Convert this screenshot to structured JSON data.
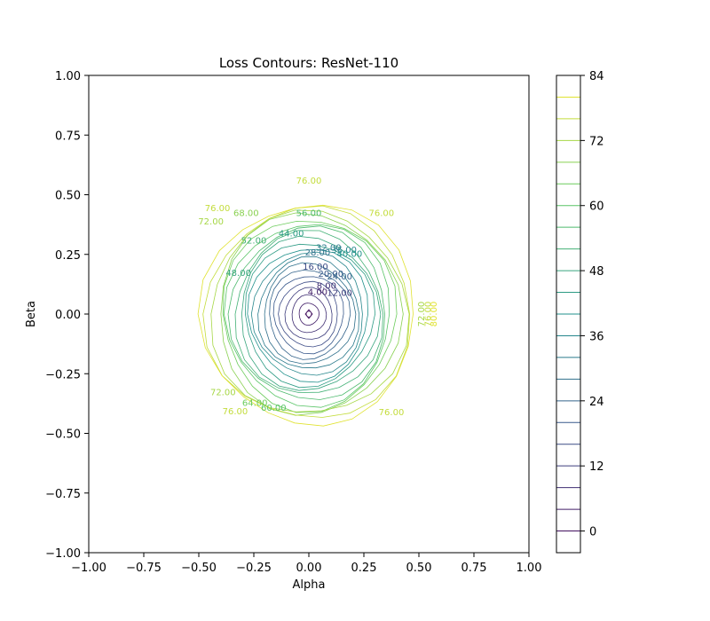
{
  "chart_data": {
    "type": "contour",
    "title": "Loss Contours: ResNet-110",
    "xlabel": "Alpha",
    "ylabel": "Beta",
    "xlim": [
      -1.0,
      1.0
    ],
    "ylim": [
      -1.0,
      1.0
    ],
    "x_ticks": [
      "−1.00",
      "−0.75",
      "−0.50",
      "−0.25",
      "0.00",
      "0.25",
      "0.50",
      "0.75",
      "1.00"
    ],
    "y_ticks": [
      "1.00",
      "0.75",
      "0.50",
      "0.25",
      "0.00",
      "−0.25",
      "−0.50",
      "−0.75",
      "−1.00"
    ],
    "center": [
      0.0,
      0.0
    ],
    "levels": [
      0,
      4,
      8,
      12,
      16,
      20,
      24,
      28,
      32,
      36,
      40,
      44,
      48,
      52,
      56,
      60,
      64,
      68,
      72,
      76,
      80
    ],
    "contour_labels": [
      {
        "text": "4.00",
        "x": 0.04,
        "y": 0.09,
        "level": 4
      },
      {
        "text": "8.00",
        "x": 0.08,
        "y": 0.115,
        "level": 8
      },
      {
        "text": "12.00",
        "x": 0.14,
        "y": 0.085,
        "level": 12
      },
      {
        "text": "16.00",
        "x": 0.03,
        "y": 0.195,
        "level": 16
      },
      {
        "text": "20.00",
        "x": 0.1,
        "y": 0.165,
        "level": 20
      },
      {
        "text": "24.00",
        "x": 0.14,
        "y": 0.155,
        "level": 24
      },
      {
        "text": "28.00",
        "x": 0.04,
        "y": 0.255,
        "level": 28
      },
      {
        "text": "32.00",
        "x": 0.09,
        "y": 0.275,
        "level": 32
      },
      {
        "text": "36.00",
        "x": 0.16,
        "y": 0.265,
        "level": 36
      },
      {
        "text": "40.00",
        "x": 0.185,
        "y": 0.25,
        "level": 40
      },
      {
        "text": "44.00",
        "x": -0.08,
        "y": 0.335,
        "level": 44
      },
      {
        "text": "48.00",
        "x": -0.32,
        "y": 0.17,
        "level": 48
      },
      {
        "text": "52.00",
        "x": -0.25,
        "y": 0.305,
        "level": 52
      },
      {
        "text": "56.00",
        "x": 0.0,
        "y": 0.42,
        "level": 56
      },
      {
        "text": "60.00",
        "x": -0.16,
        "y": -0.395,
        "level": 60
      },
      {
        "text": "64.00",
        "x": -0.245,
        "y": -0.375,
        "level": 64
      },
      {
        "text": "68.00",
        "x": -0.285,
        "y": 0.42,
        "level": 68
      },
      {
        "text": "72.00",
        "x": -0.445,
        "y": 0.385,
        "level": 72
      },
      {
        "text": "72.00",
        "x": -0.39,
        "y": -0.33,
        "level": 72
      },
      {
        "text": "72.00",
        "x": 0.515,
        "y": 0.0,
        "level": 72
      },
      {
        "text": "76.00",
        "x": 0.0,
        "y": 0.555,
        "level": 76
      },
      {
        "text": "76.00",
        "x": -0.415,
        "y": 0.44,
        "level": 76
      },
      {
        "text": "76.00",
        "x": 0.33,
        "y": 0.42,
        "level": 76
      },
      {
        "text": "76.00",
        "x": -0.335,
        "y": -0.41,
        "level": 76
      },
      {
        "text": "76.00",
        "x": 0.375,
        "y": -0.415,
        "level": 76
      },
      {
        "text": "76.00",
        "x": 0.545,
        "y": 0.0,
        "level": 76
      },
      {
        "text": "80.00",
        "x": 0.57,
        "y": 0.0,
        "level": 80
      }
    ],
    "colorbar": {
      "ticks": [
        "0",
        "12",
        "24",
        "36",
        "48",
        "60",
        "72",
        "84"
      ],
      "min": -4,
      "max": 84
    },
    "colormap": [
      "#440154",
      "#3b528b",
      "#21918c",
      "#5ec962",
      "#fde725"
    ],
    "grid": false
  }
}
